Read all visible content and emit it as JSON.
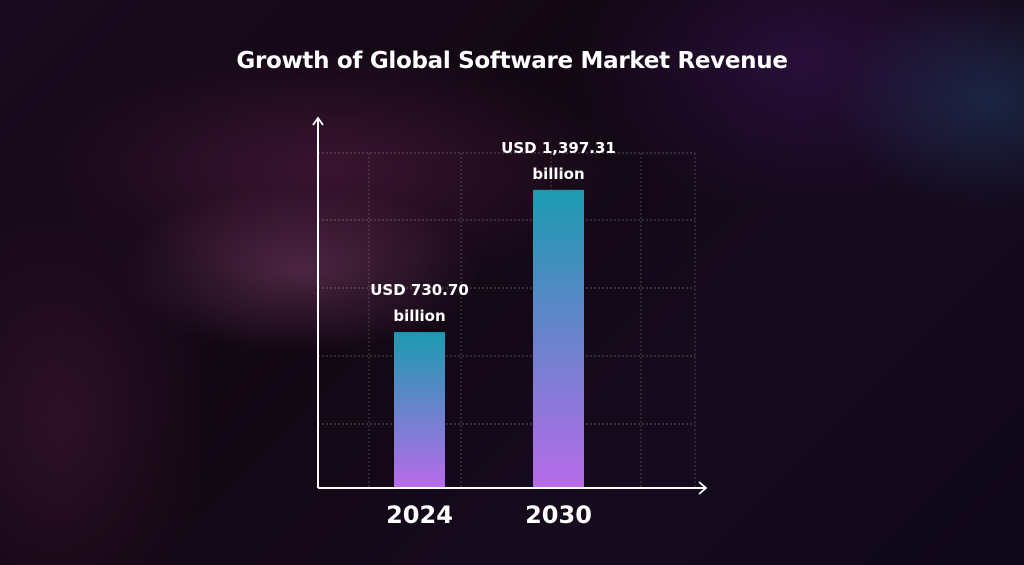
{
  "chart_data": {
    "type": "bar",
    "title": "Growth of Global Software Market Revenue",
    "categories": [
      "2024",
      "2030"
    ],
    "values": [
      730.7,
      1397.31
    ],
    "data_labels": [
      [
        "USD 730.70",
        "billion"
      ],
      [
        "USD 1,397.31",
        "billion"
      ]
    ],
    "xlabel": "",
    "ylabel": "",
    "ylim": [
      0,
      1570
    ],
    "grid": true,
    "colors": {
      "bar_top": "#1b9bb0",
      "bar_bottom": "#b86bea",
      "axis": "#ffffff"
    }
  }
}
